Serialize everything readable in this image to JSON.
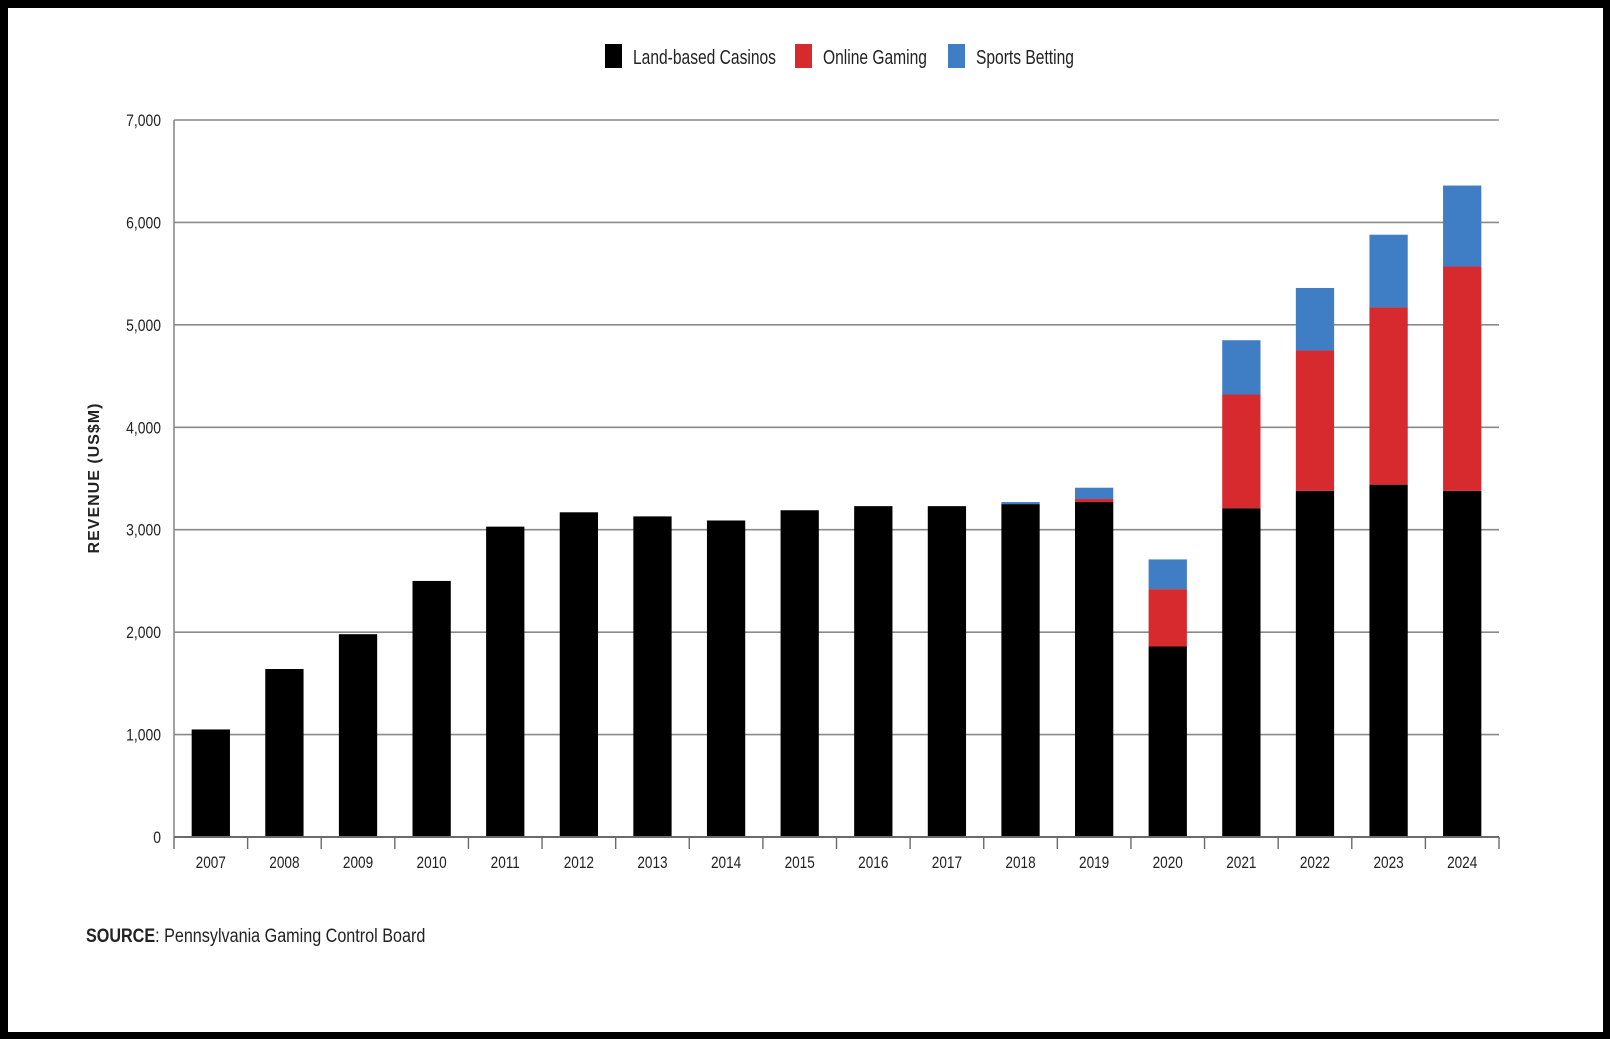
{
  "chart_data": {
    "type": "bar",
    "stacked": true,
    "title": "",
    "xlabel": "",
    "ylabel": "REVENUE (US$M)",
    "ylim": [
      0,
      7000
    ],
    "yticks": [
      0,
      1000,
      2000,
      3000,
      4000,
      5000,
      6000,
      7000
    ],
    "ytick_labels": [
      "0",
      "1,000",
      "2,000",
      "3,000",
      "4,000",
      "5,000",
      "6,000",
      "7,000"
    ],
    "grid": true,
    "legend_position": "top-center",
    "categories": [
      "2007",
      "2008",
      "2009",
      "2010",
      "2011",
      "2012",
      "2013",
      "2014",
      "2015",
      "2016",
      "2017",
      "2018",
      "2019",
      "2020",
      "2021",
      "2022",
      "2023",
      "2024"
    ],
    "series": [
      {
        "name": "Land-based Casinos",
        "color": "#000000",
        "values": [
          1050,
          1640,
          1980,
          2500,
          3030,
          3170,
          3130,
          3090,
          3190,
          3230,
          3230,
          3250,
          3270,
          1860,
          3210,
          3380,
          3440,
          3380
        ]
      },
      {
        "name": "Online Gaming",
        "color": "#d62a2e",
        "values": [
          0,
          0,
          0,
          0,
          0,
          0,
          0,
          0,
          0,
          0,
          0,
          0,
          30,
          560,
          1110,
          1370,
          1730,
          2190
        ]
      },
      {
        "name": "Sports Betting",
        "color": "#3f7ec4",
        "values": [
          0,
          0,
          0,
          0,
          0,
          0,
          0,
          0,
          0,
          0,
          0,
          20,
          110,
          290,
          530,
          610,
          710,
          790
        ]
      }
    ]
  },
  "source": {
    "label": "SOURCE",
    "text": ": Pennsylvania Gaming Control Board"
  }
}
